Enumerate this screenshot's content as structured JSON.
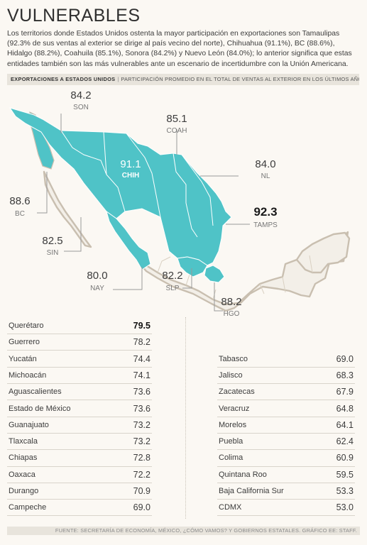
{
  "title": "VULNERABLES",
  "intro": "Los territorios donde Estados Unidos ostenta la mayor participación en exportaciones son Tamaulipas (92.3% de sus ventas al exterior se dirige al país vecino del norte), Chihuahua (91.1%), BC (88.6%), Hidalgo (88.2%), Coahuila (85.1%), Sonora (84.2%) y Nuevo León (84.0%); lo anterior significa que estas entidades también son las más vulnerables ante un escenario de incertidumbre con la Unión Americana.",
  "band": {
    "label": "EXPORTACIONES A ESTADOS UNIDOS",
    "separator": "|",
    "sublabel": "PARTICIPACIÓN PROMEDIO EN EL TOTAL DE VENTAS AL EXTERIOR EN LOS ÚLTIMOS AÑOS %"
  },
  "map": {
    "highlight_color": "#4fc3c7",
    "base_color": "#f3efe8",
    "outline_color": "#c9bfb0",
    "callouts": [
      {
        "state": "SON",
        "value": "84.2"
      },
      {
        "state": "COAH",
        "value": "85.1"
      },
      {
        "state": "CHIH",
        "value": "91.1"
      },
      {
        "state": "NL",
        "value": "84.0"
      },
      {
        "state": "BC",
        "value": "88.6"
      },
      {
        "state": "TAMPS",
        "value": "92.3"
      },
      {
        "state": "SIN",
        "value": "82.5"
      },
      {
        "state": "NAY",
        "value": "80.0"
      },
      {
        "state": "SLP",
        "value": "82.2"
      },
      {
        "state": "HGO",
        "value": "88.2"
      }
    ]
  },
  "table_left": [
    {
      "name": "Querétaro",
      "value": "79.5"
    },
    {
      "name": "Guerrero",
      "value": "78.2"
    },
    {
      "name": "Yucatán",
      "value": "74.4"
    },
    {
      "name": "Michoacán",
      "value": "74.1"
    },
    {
      "name": "Aguascalientes",
      "value": "73.6"
    },
    {
      "name": "Estado de México",
      "value": "73.6"
    },
    {
      "name": "Guanajuato",
      "value": "73.2"
    },
    {
      "name": "Tlaxcala",
      "value": "73.2"
    },
    {
      "name": "Chiapas",
      "value": "72.8"
    },
    {
      "name": "Oaxaca",
      "value": "72.2"
    },
    {
      "name": "Durango",
      "value": "70.9"
    },
    {
      "name": "Campeche",
      "value": "69.0"
    }
  ],
  "table_right": [
    {
      "name": "Tabasco",
      "value": "69.0"
    },
    {
      "name": "Jalisco",
      "value": "68.3"
    },
    {
      "name": "Zacatecas",
      "value": "67.9"
    },
    {
      "name": "Veracruz",
      "value": "64.8"
    },
    {
      "name": "Morelos",
      "value": "64.1"
    },
    {
      "name": "Puebla",
      "value": "62.4"
    },
    {
      "name": "Colima",
      "value": "60.9"
    },
    {
      "name": "Quintana Roo",
      "value": "59.5"
    },
    {
      "name": "Baja California Sur",
      "value": "53.3"
    },
    {
      "name": "CDMX",
      "value": "53.0"
    }
  ],
  "source": "FUENTE: SECRETARÍA DE ECONOMÍA, MÉXICO, ¿CÓMO VAMOS? Y GOBIERNOS ESTATALES. GRÁFICO EE: STAFF."
}
